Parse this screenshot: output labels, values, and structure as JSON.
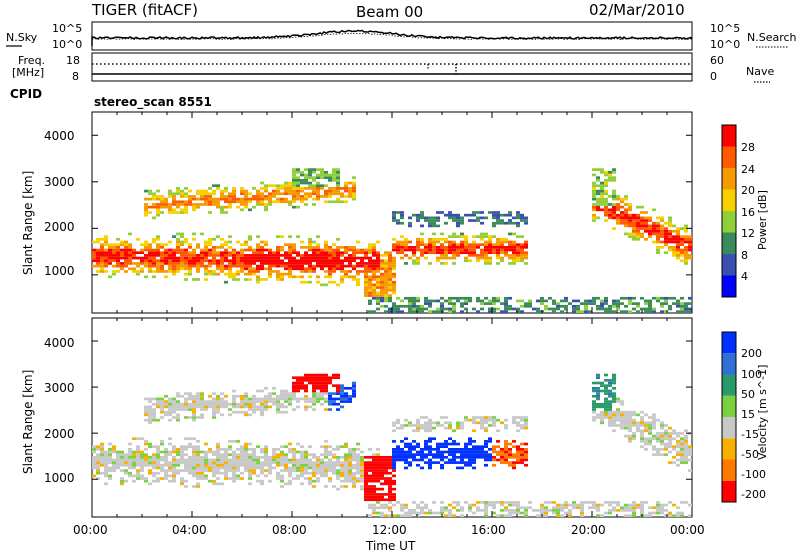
{
  "header": {
    "radar": "TIGER (fitACF)",
    "beam": "Beam 00",
    "date": "02/Mar/2010"
  },
  "top_panel": {
    "left_label": "N.Sky",
    "left_ticks": [
      "10^5",
      "10^0"
    ],
    "right_label": "N.Search",
    "right_ticks": [
      "10^5",
      "10^0"
    ]
  },
  "freq_panel": {
    "left_label_1": "Freq.",
    "left_label_2": "[MHz]",
    "left_ticks": [
      "18",
      "8"
    ],
    "right_label": "Nave",
    "right_ticks": [
      "60",
      "0"
    ]
  },
  "cpid": {
    "label": "CPID",
    "value": "stereo_scan 8551"
  },
  "chart_data": [
    {
      "type": "heatmap",
      "ylabel": "Slant Range [km]",
      "colorbar_label": "Power [dB]",
      "colorbar_ticks": [
        "4",
        "8",
        "12",
        "16",
        "20",
        "24",
        "28"
      ],
      "colors": [
        "#0000ff",
        "#3a4fb0",
        "#3a8a5a",
        "#8fcf3a",
        "#f7d000",
        "#f59a00",
        "#ff5a00",
        "#ff0000"
      ],
      "y_ticks": [
        "1000",
        "2000",
        "3000",
        "4000"
      ],
      "ylim": [
        180,
        4500
      ]
    },
    {
      "type": "heatmap",
      "ylabel": "Slant Range [km]",
      "colorbar_label": "Velocity [m s^-1]",
      "colorbar_ticks": [
        "200",
        "100",
        "50",
        "15",
        "-15",
        "-50",
        "-100",
        "-200"
      ],
      "colors": [
        "#0030ff",
        "#2f6fd6",
        "#2a9a6a",
        "#7ad040",
        "#c8c8c8",
        "#f7b000",
        "#ff7800",
        "#ff0000"
      ],
      "y_ticks": [
        "1000",
        "2000",
        "3000",
        "4000"
      ],
      "ylim": [
        180,
        4500
      ]
    }
  ],
  "x_axis": {
    "label": "Time UT",
    "ticks": [
      "00:00",
      "04:00",
      "08:00",
      "12:00",
      "16:00",
      "20:00",
      "00:00"
    ]
  }
}
